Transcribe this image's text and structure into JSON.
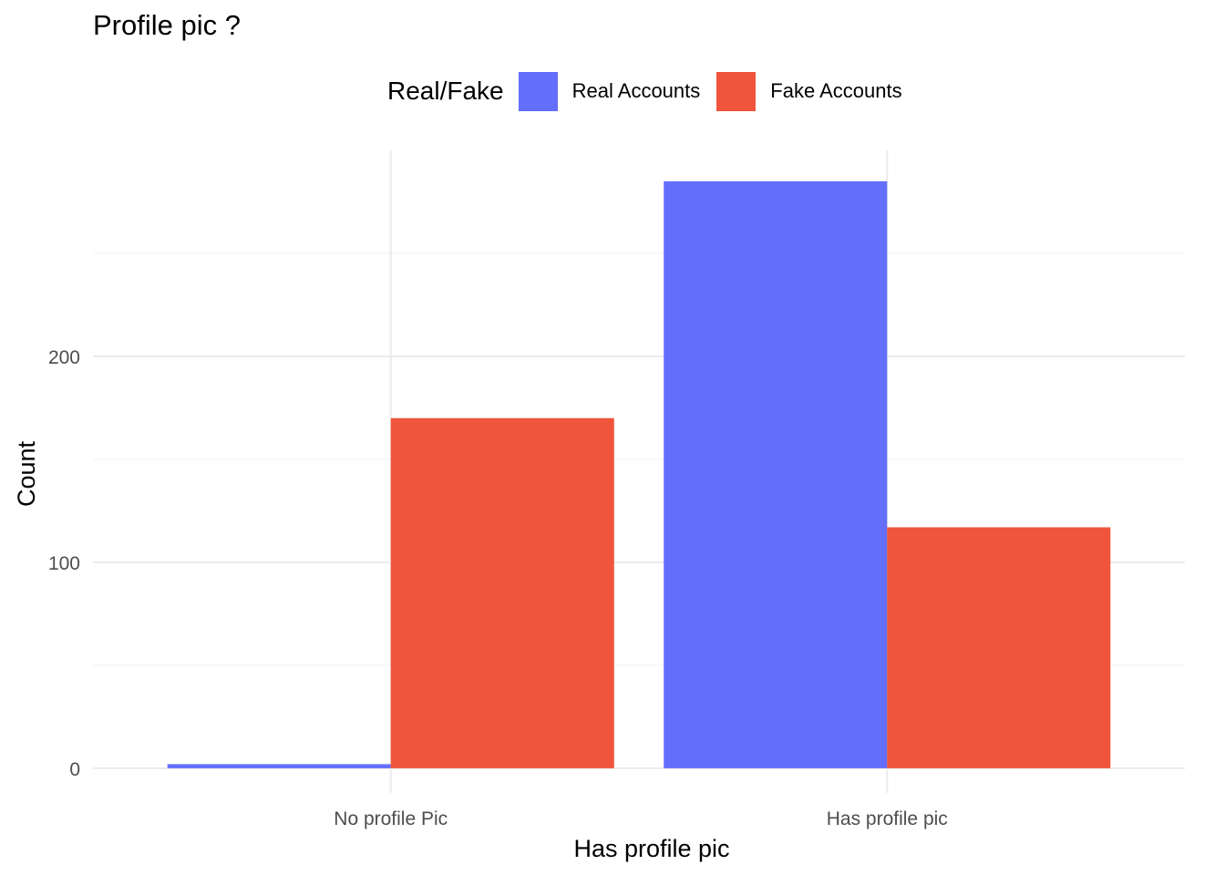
{
  "chart_data": {
    "type": "bar",
    "title": "Profile pic ?",
    "xlabel": "Has profile pic",
    "ylabel": "Count",
    "categories": [
      "No profile Pic",
      "Has profile pic"
    ],
    "series": [
      {
        "name": "Real Accounts",
        "color": "#636efa",
        "values": [
          2,
          285
        ]
      },
      {
        "name": "Fake Accounts",
        "color": "#ef553b",
        "values": [
          170,
          117
        ]
      }
    ],
    "legend": {
      "title": "Real/Fake",
      "position": "top"
    },
    "y_ticks": [
      0,
      100,
      200
    ],
    "ylim": [
      -12,
      300
    ],
    "grid": true
  }
}
